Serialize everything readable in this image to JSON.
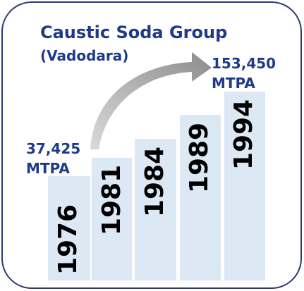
{
  "title": "Caustic Soda Group",
  "subtitle": "(Vadodara)",
  "bars": [
    {
      "label": "1976"
    },
    {
      "label": "1981"
    },
    {
      "label": "1984"
    },
    {
      "label": "1989"
    },
    {
      "label": "1994"
    }
  ],
  "annotations": [
    {
      "value": "37,425",
      "unit": "MTPA"
    },
    {
      "value": "153,450",
      "unit": "MTPA"
    }
  ]
}
